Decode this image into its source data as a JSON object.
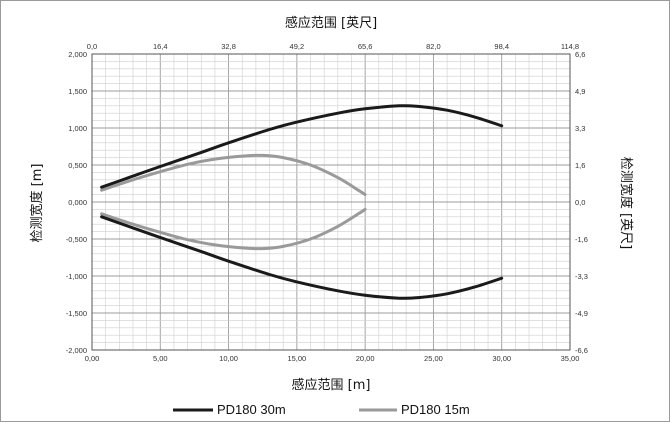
{
  "chart_data": {
    "type": "line",
    "title_top": "感应范围 [英尺]",
    "xlabel": "感应范围 [m]",
    "ylabel": "检测宽度 [m]",
    "ylabel_right": "检测宽度 [英尺]",
    "xlim": [
      0,
      35
    ],
    "ylim": [
      -2,
      2
    ],
    "x_ticks": [
      "0,00",
      "5,00",
      "10,00",
      "15,00",
      "20,00",
      "25,00",
      "30,00",
      "35,00"
    ],
    "y_ticks": [
      "2,000",
      "1,500",
      "1,000",
      "0,500",
      "0,000",
      "-0,500",
      "-1,000",
      "-1,500",
      "-2,000"
    ],
    "x2_ticks": [
      "0,0",
      "16,4",
      "32,8",
      "49,2",
      "65,6",
      "82,0",
      "98,4",
      "114,8"
    ],
    "y2_ticks": [
      "6,6",
      "4,9",
      "3,3",
      "1,6",
      "0,0",
      "-1,6",
      "-3,3",
      "-4,9",
      "-6,6"
    ],
    "grid": true,
    "legend_position": "bottom",
    "series": [
      {
        "name": "PD180 30m",
        "color": "#1a1a1a",
        "upper": {
          "x": [
            0.7,
            3,
            5,
            8,
            10,
            13,
            15,
            18,
            20,
            22.5,
            24,
            26,
            28,
            30
          ],
          "y": [
            0.2,
            0.35,
            0.48,
            0.67,
            0.8,
            0.98,
            1.08,
            1.2,
            1.26,
            1.3,
            1.29,
            1.24,
            1.15,
            1.03
          ]
        },
        "lower": {
          "x": [
            0.7,
            3,
            5,
            8,
            10,
            13,
            15,
            18,
            20,
            22.5,
            24,
            26,
            28,
            30
          ],
          "y": [
            -0.2,
            -0.35,
            -0.48,
            -0.67,
            -0.8,
            -0.98,
            -1.08,
            -1.2,
            -1.26,
            -1.3,
            -1.29,
            -1.24,
            -1.15,
            -1.03
          ]
        }
      },
      {
        "name": "PD180 15m",
        "color": "#9a9a9a",
        "upper": {
          "x": [
            0.7,
            3,
            5,
            7,
            9,
            11,
            12.5,
            14,
            16,
            18,
            19.5,
            20
          ],
          "y": [
            0.16,
            0.3,
            0.41,
            0.51,
            0.58,
            0.62,
            0.63,
            0.6,
            0.5,
            0.33,
            0.16,
            0.1
          ]
        },
        "lower": {
          "x": [
            0.7,
            3,
            5,
            7,
            9,
            11,
            12.5,
            14,
            16,
            18,
            19.5,
            20
          ],
          "y": [
            -0.16,
            -0.3,
            -0.41,
            -0.51,
            -0.58,
            -0.62,
            -0.63,
            -0.6,
            -0.5,
            -0.33,
            -0.16,
            -0.1
          ]
        }
      }
    ]
  }
}
